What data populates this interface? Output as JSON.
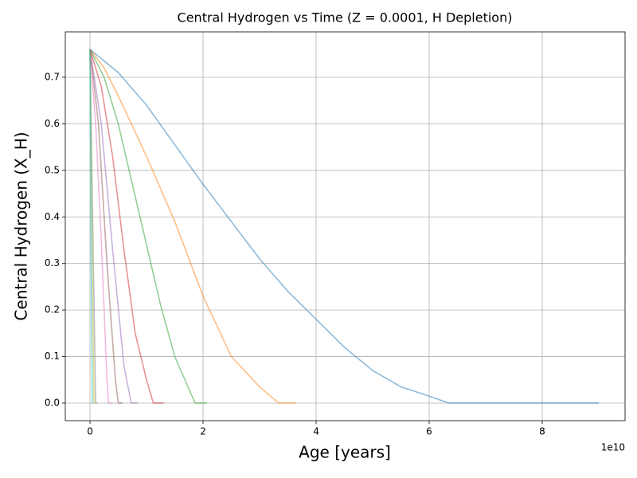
{
  "chart_data": {
    "type": "line",
    "title": "Central Hydrogen vs Time (Z = 0.0001, H Depletion)",
    "xlabel": "Age [years]",
    "ylabel": "Central Hydrogen (X_H)",
    "x_offset_label": "1e10",
    "xlim": [
      -0.437,
      9.465
    ],
    "ylim": [
      -0.0377,
      0.7975
    ],
    "xticks": [
      0,
      2,
      4,
      6,
      8
    ],
    "yticks": [
      {
        "value": 0,
        "label": "0.0"
      },
      0.1,
      0.2,
      0.3,
      0.4,
      0.5,
      0.6,
      0.7
    ],
    "grid": true,
    "series": [
      {
        "color": "#1f77b4",
        "x": [
          0,
          0.5,
          1,
          1.5,
          2,
          2.5,
          3,
          3.5,
          4,
          4.5,
          5,
          5.5,
          6,
          6.35,
          9.0
        ],
        "values": [
          0.76,
          0.71,
          0.64,
          0.555,
          0.47,
          0.39,
          0.31,
          0.24,
          0.18,
          0.12,
          0.07,
          0.035,
          0.015,
          0,
          0
        ]
      },
      {
        "color": "#ff7f0e",
        "x": [
          0,
          0.25,
          0.5,
          1,
          1.5,
          2,
          2.5,
          3,
          3.34,
          3.65
        ],
        "values": [
          0.76,
          0.72,
          0.66,
          0.53,
          0.39,
          0.23,
          0.1,
          0.035,
          0,
          0
        ]
      },
      {
        "color": "#2ca02c",
        "x": [
          0,
          0.25,
          0.5,
          0.75,
          1,
          1.25,
          1.5,
          1.75,
          1.86,
          2.07
        ],
        "values": [
          0.76,
          0.7,
          0.6,
          0.47,
          0.34,
          0.21,
          0.1,
          0.03,
          0,
          0
        ]
      },
      {
        "color": "#d62728",
        "x": [
          0,
          0.2,
          0.4,
          0.6,
          0.8,
          1,
          1.12,
          1.3
        ],
        "values": [
          0.76,
          0.68,
          0.53,
          0.33,
          0.15,
          0.05,
          0,
          0
        ]
      },
      {
        "color": "#9467bd",
        "x": [
          0,
          0.2,
          0.4,
          0.6,
          0.73,
          0.85
        ],
        "values": [
          0.76,
          0.6,
          0.33,
          0.08,
          0,
          0
        ]
      },
      {
        "color": "#8c564b",
        "x": [
          0,
          0.15,
          0.3,
          0.45,
          0.5,
          0.58
        ],
        "values": [
          0.76,
          0.6,
          0.3,
          0.05,
          0,
          0
        ]
      },
      {
        "color": "#e377c2",
        "x": [
          0,
          0.1,
          0.2,
          0.3,
          0.33,
          0.4
        ],
        "values": [
          0.76,
          0.6,
          0.35,
          0.05,
          0,
          0
        ]
      },
      {
        "color": "#7f7f7f",
        "x": [
          0,
          0.06,
          0.1,
          0.13
        ],
        "values": [
          0.76,
          0.3,
          0,
          0
        ]
      },
      {
        "color": "#bcbd22",
        "x": [
          0,
          0.04,
          0.07,
          0.09
        ],
        "values": [
          0.76,
          0.3,
          0,
          0
        ]
      },
      {
        "color": "#17becf",
        "x": [
          0,
          0.02,
          0.04,
          0.05
        ],
        "values": [
          0.76,
          0.3,
          0,
          0
        ]
      }
    ]
  }
}
